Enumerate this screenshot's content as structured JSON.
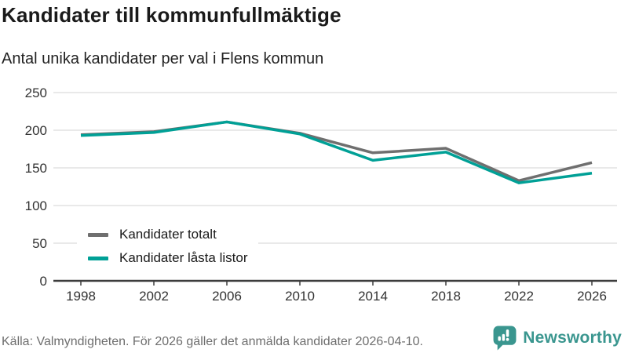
{
  "chart_data": {
    "type": "line",
    "title": "Kandidater till kommunfullmäktige",
    "subtitle": "Antal unika kandidater per val i Flens kommun",
    "x": [
      1998,
      2002,
      2006,
      2010,
      2014,
      2018,
      2022,
      2026
    ],
    "series": [
      {
        "name": "Kandidater totalt",
        "color": "#6f6f6f",
        "values": [
          194,
          198,
          211,
          196,
          170,
          176,
          133,
          157
        ]
      },
      {
        "name": "Kandidater låsta listor",
        "color": "#00a096",
        "values": [
          193,
          197,
          211,
          195,
          160,
          171,
          130,
          143
        ]
      }
    ],
    "ylim": [
      0,
      250
    ],
    "yticks": [
      0,
      50,
      100,
      150,
      200,
      250
    ],
    "grid": true,
    "legend_position": "inside-bottom-left"
  },
  "footer": {
    "source": "Källa: Valmyndigheten. För 2026 gäller det anmälda kandidater 2026-04-10.",
    "logo_text": "Newsworthy"
  },
  "colors": {
    "series_total": "#6f6f6f",
    "series_locked_lists": "#00a096",
    "logo_teal": "#3a968f",
    "gridline": "#e2e2e2",
    "axis": "#3d3d3d"
  }
}
